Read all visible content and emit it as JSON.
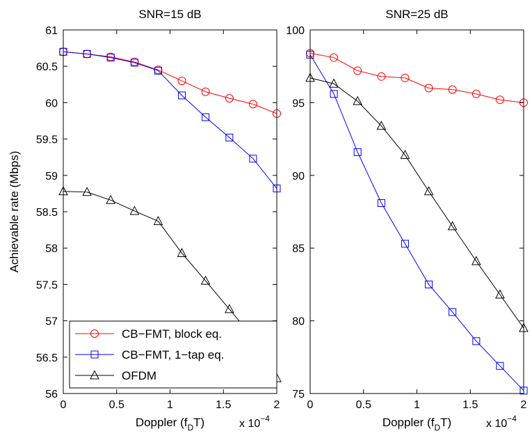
{
  "colors": {
    "block_eq": "#ff0000",
    "one_tap_eq": "#0000ff",
    "ofdm": "#000000",
    "axes": "#000000"
  },
  "chart_data": [
    {
      "type": "line",
      "title": "SNR=15 dB",
      "xlabel": "Doppler (f",
      "xlabel_sub": "D",
      "xlabel_end": "T)",
      "ylabel": "Achievable rate (Mbps)",
      "x_multiplier_base": "x 10",
      "x_multiplier_exp": "−4",
      "xlim": [
        0,
        2
      ],
      "ylim": [
        56,
        61
      ],
      "xticks": [
        0,
        0.5,
        1,
        1.5,
        2
      ],
      "xtick_labels": [
        "0",
        "0.5",
        "1",
        "1.5",
        "2"
      ],
      "yticks": [
        56,
        56.5,
        57,
        57.5,
        58,
        58.5,
        59,
        59.5,
        60,
        60.5,
        61
      ],
      "ytick_labels": [
        "56",
        "56.5",
        "57",
        "57.5",
        "58",
        "58.5",
        "59",
        "59.5",
        "60",
        "60.5",
        "61"
      ],
      "grid": false,
      "legend_position": "bottom-left",
      "x": [
        0,
        0.222,
        0.444,
        0.667,
        0.889,
        1.111,
        1.333,
        1.556,
        1.778,
        2.0
      ],
      "series": [
        {
          "name": "CB−FMT, block eq.",
          "marker": "circle",
          "color": "#ff0000",
          "values": [
            60.7,
            60.67,
            60.63,
            60.56,
            60.45,
            60.3,
            60.15,
            60.06,
            59.98,
            59.85
          ]
        },
        {
          "name": "CB−FMT, 1−tap eq.",
          "marker": "square",
          "color": "#0000ff",
          "values": [
            60.7,
            60.67,
            60.62,
            60.55,
            60.44,
            60.1,
            59.8,
            59.52,
            59.23,
            58.82
          ]
        },
        {
          "name": "OFDM",
          "marker": "triangle",
          "color": "#000000",
          "values": [
            58.78,
            58.77,
            58.66,
            58.51,
            58.37,
            57.93,
            57.55,
            57.16,
            56.77,
            56.21
          ]
        }
      ]
    },
    {
      "type": "line",
      "title": "SNR=25 dB",
      "xlabel": "Doppler (f",
      "xlabel_sub": "D",
      "xlabel_end": "T)",
      "ylabel": "",
      "x_multiplier_base": "x 10",
      "x_multiplier_exp": "−4",
      "xlim": [
        0,
        2
      ],
      "ylim": [
        75,
        100
      ],
      "xticks": [
        0,
        0.5,
        1,
        1.5,
        2
      ],
      "xtick_labels": [
        "0",
        "0.5",
        "1",
        "1.5",
        "2"
      ],
      "yticks": [
        75,
        80,
        85,
        90,
        95,
        100
      ],
      "ytick_labels": [
        "75",
        "80",
        "85",
        "90",
        "95",
        "100"
      ],
      "grid": false,
      "x": [
        0,
        0.222,
        0.444,
        0.667,
        0.889,
        1.111,
        1.333,
        1.556,
        1.778,
        2.0
      ],
      "series": [
        {
          "name": "CB−FMT, block eq.",
          "marker": "circle",
          "color": "#ff0000",
          "values": [
            98.4,
            98.1,
            97.2,
            96.8,
            96.7,
            96.0,
            95.9,
            95.6,
            95.2,
            95.0
          ]
        },
        {
          "name": "CB−FMT, 1−tap eq.",
          "marker": "square",
          "color": "#0000ff",
          "values": [
            98.3,
            95.6,
            91.6,
            88.1,
            85.3,
            82.5,
            80.6,
            78.6,
            76.9,
            75.2
          ]
        },
        {
          "name": "OFDM",
          "marker": "triangle",
          "color": "#000000",
          "values": [
            96.7,
            96.3,
            95.1,
            93.4,
            91.4,
            88.9,
            86.5,
            84.1,
            81.8,
            79.5
          ]
        }
      ]
    }
  ],
  "legend": {
    "items": [
      {
        "label": "CB−FMT, block eq.",
        "marker": "circle",
        "color": "#ff0000"
      },
      {
        "label": "CB−FMT, 1−tap eq.",
        "marker": "square",
        "color": "#0000ff"
      },
      {
        "label": "OFDM",
        "marker": "triangle",
        "color": "#000000"
      }
    ]
  }
}
